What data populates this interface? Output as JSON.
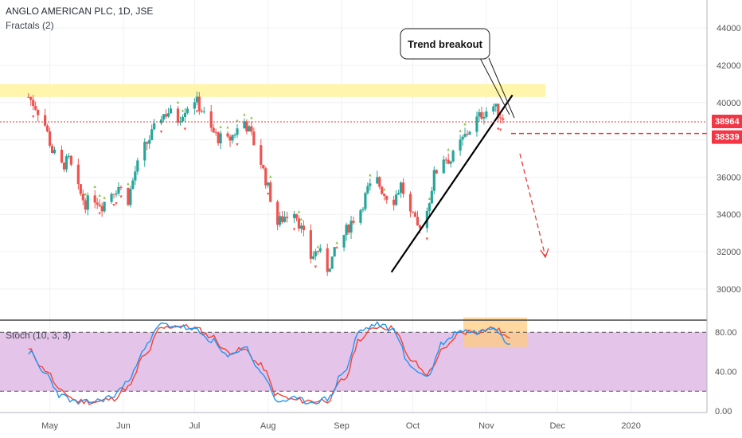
{
  "header": {
    "symbol_line": "ANGLO AMERICAN PLC, 1D, JSE",
    "indicator_line": "Fractals (2)"
  },
  "stoch_panel": {
    "label": "Stoch (10, 3, 3)",
    "levels": [
      80,
      20
    ],
    "y_ticks": [
      "0.00",
      "40.00",
      "80.00"
    ]
  },
  "annotation": {
    "callout": "Trend breakout"
  },
  "price_tags": {
    "current": "38964",
    "target": "38339"
  },
  "colors": {
    "bull": "#26a69a",
    "bear": "#ef5350",
    "highlight_zone": "#fff59d",
    "stoch_bg": "#e1bee7",
    "stoch_k": "#2196f3",
    "stoch_d": "#f44336",
    "price_tag": "#f23645"
  },
  "chart_data": {
    "type": "candlestick",
    "title": "ANGLO AMERICAN PLC, 1D, JSE",
    "y_ticks": [
      30000,
      32000,
      34000,
      36000,
      38000,
      40000,
      42000,
      44000
    ],
    "ylim": [
      28500,
      45500
    ],
    "x_ticks": [
      "May",
      "Jun",
      "Jul",
      "Aug",
      "Sep",
      "Oct",
      "Nov",
      "Dec",
      "2020"
    ],
    "resistance_zone": [
      40300,
      41000
    ],
    "current_price": 38964,
    "target_price": 38339,
    "trendline": [
      {
        "date": "2019-09-22",
        "price": 30900
      },
      {
        "date": "2019-11-12",
        "price": 40400
      }
    ],
    "closes": [
      [
        "2019-04-22",
        40300
      ],
      [
        "2019-04-25",
        39800
      ],
      [
        "2019-04-29",
        38800
      ],
      [
        "2019-05-02",
        37400
      ],
      [
        "2019-05-06",
        36600
      ],
      [
        "2019-05-09",
        36900
      ],
      [
        "2019-05-13",
        35300
      ],
      [
        "2019-05-16",
        34600
      ],
      [
        "2019-05-20",
        34900
      ],
      [
        "2019-05-23",
        34500
      ],
      [
        "2019-05-27",
        35200
      ],
      [
        "2019-05-30",
        35500
      ],
      [
        "2019-06-03",
        34800
      ],
      [
        "2019-06-06",
        36300
      ],
      [
        "2019-06-10",
        37600
      ],
      [
        "2019-06-13",
        38300
      ],
      [
        "2019-06-17",
        39300
      ],
      [
        "2019-06-20",
        39500
      ],
      [
        "2019-06-24",
        39100
      ],
      [
        "2019-06-27",
        39700
      ],
      [
        "2019-07-01",
        40200
      ],
      [
        "2019-07-04",
        39600
      ],
      [
        "2019-07-08",
        38500
      ],
      [
        "2019-07-11",
        38100
      ],
      [
        "2019-07-15",
        37900
      ],
      [
        "2019-07-18",
        38400
      ],
      [
        "2019-07-22",
        39000
      ],
      [
        "2019-07-25",
        38200
      ],
      [
        "2019-07-29",
        36800
      ],
      [
        "2019-08-01",
        35400
      ],
      [
        "2019-08-05",
        33500
      ],
      [
        "2019-08-08",
        33900
      ],
      [
        "2019-08-12",
        34300
      ],
      [
        "2019-08-15",
        33200
      ],
      [
        "2019-08-19",
        31700
      ],
      [
        "2019-08-22",
        32100
      ],
      [
        "2019-08-26",
        31100
      ],
      [
        "2019-08-29",
        31900
      ],
      [
        "2019-09-02",
        32900
      ],
      [
        "2019-09-05",
        33600
      ],
      [
        "2019-09-09",
        34300
      ],
      [
        "2019-09-12",
        35300
      ],
      [
        "2019-09-16",
        35800
      ],
      [
        "2019-09-19",
        35100
      ],
      [
        "2019-09-23",
        34800
      ],
      [
        "2019-09-26",
        35600
      ],
      [
        "2019-09-30",
        34000
      ],
      [
        "2019-10-03",
        33300
      ],
      [
        "2019-10-07",
        34200
      ],
      [
        "2019-10-10",
        36100
      ],
      [
        "2019-10-14",
        37100
      ],
      [
        "2019-10-17",
        36900
      ],
      [
        "2019-10-21",
        37800
      ],
      [
        "2019-10-24",
        38400
      ],
      [
        "2019-10-28",
        39100
      ],
      [
        "2019-10-31",
        39500
      ],
      [
        "2019-11-04",
        39800
      ],
      [
        "2019-11-07",
        39300
      ],
      [
        "2019-11-11",
        38964
      ]
    ],
    "stoch_k": [
      [
        "2019-04-22",
        60
      ],
      [
        "2019-04-29",
        38
      ],
      [
        "2019-05-06",
        15
      ],
      [
        "2019-05-13",
        8
      ],
      [
        "2019-05-20",
        10
      ],
      [
        "2019-05-27",
        14
      ],
      [
        "2019-06-03",
        30
      ],
      [
        "2019-06-10",
        65
      ],
      [
        "2019-06-17",
        88
      ],
      [
        "2019-06-24",
        86
      ],
      [
        "2019-07-01",
        82
      ],
      [
        "2019-07-08",
        72
      ],
      [
        "2019-07-15",
        55
      ],
      [
        "2019-07-22",
        65
      ],
      [
        "2019-07-29",
        40
      ],
      [
        "2019-08-05",
        10
      ],
      [
        "2019-08-12",
        12
      ],
      [
        "2019-08-19",
        9
      ],
      [
        "2019-08-26",
        12
      ],
      [
        "2019-09-02",
        40
      ],
      [
        "2019-09-09",
        82
      ],
      [
        "2019-09-16",
        88
      ],
      [
        "2019-09-23",
        82
      ],
      [
        "2019-09-30",
        45
      ],
      [
        "2019-10-07",
        35
      ],
      [
        "2019-10-14",
        70
      ],
      [
        "2019-10-21",
        82
      ],
      [
        "2019-10-28",
        80
      ],
      [
        "2019-11-04",
        86
      ],
      [
        "2019-11-11",
        68
      ]
    ],
    "stoch_d": [
      [
        "2019-04-22",
        62
      ],
      [
        "2019-04-29",
        42
      ],
      [
        "2019-05-06",
        19
      ],
      [
        "2019-05-13",
        10
      ],
      [
        "2019-05-20",
        9
      ],
      [
        "2019-05-27",
        12
      ],
      [
        "2019-06-03",
        24
      ],
      [
        "2019-06-10",
        56
      ],
      [
        "2019-06-17",
        84
      ],
      [
        "2019-06-24",
        87
      ],
      [
        "2019-07-01",
        84
      ],
      [
        "2019-07-08",
        76
      ],
      [
        "2019-07-15",
        60
      ],
      [
        "2019-07-22",
        62
      ],
      [
        "2019-07-29",
        46
      ],
      [
        "2019-08-05",
        16
      ],
      [
        "2019-08-12",
        11
      ],
      [
        "2019-08-19",
        10
      ],
      [
        "2019-08-26",
        11
      ],
      [
        "2019-09-02",
        32
      ],
      [
        "2019-09-09",
        74
      ],
      [
        "2019-09-16",
        86
      ],
      [
        "2019-09-23",
        84
      ],
      [
        "2019-09-30",
        52
      ],
      [
        "2019-10-07",
        38
      ],
      [
        "2019-10-14",
        62
      ],
      [
        "2019-10-21",
        80
      ],
      [
        "2019-10-28",
        81
      ],
      [
        "2019-11-04",
        84
      ],
      [
        "2019-11-11",
        74
      ]
    ]
  }
}
